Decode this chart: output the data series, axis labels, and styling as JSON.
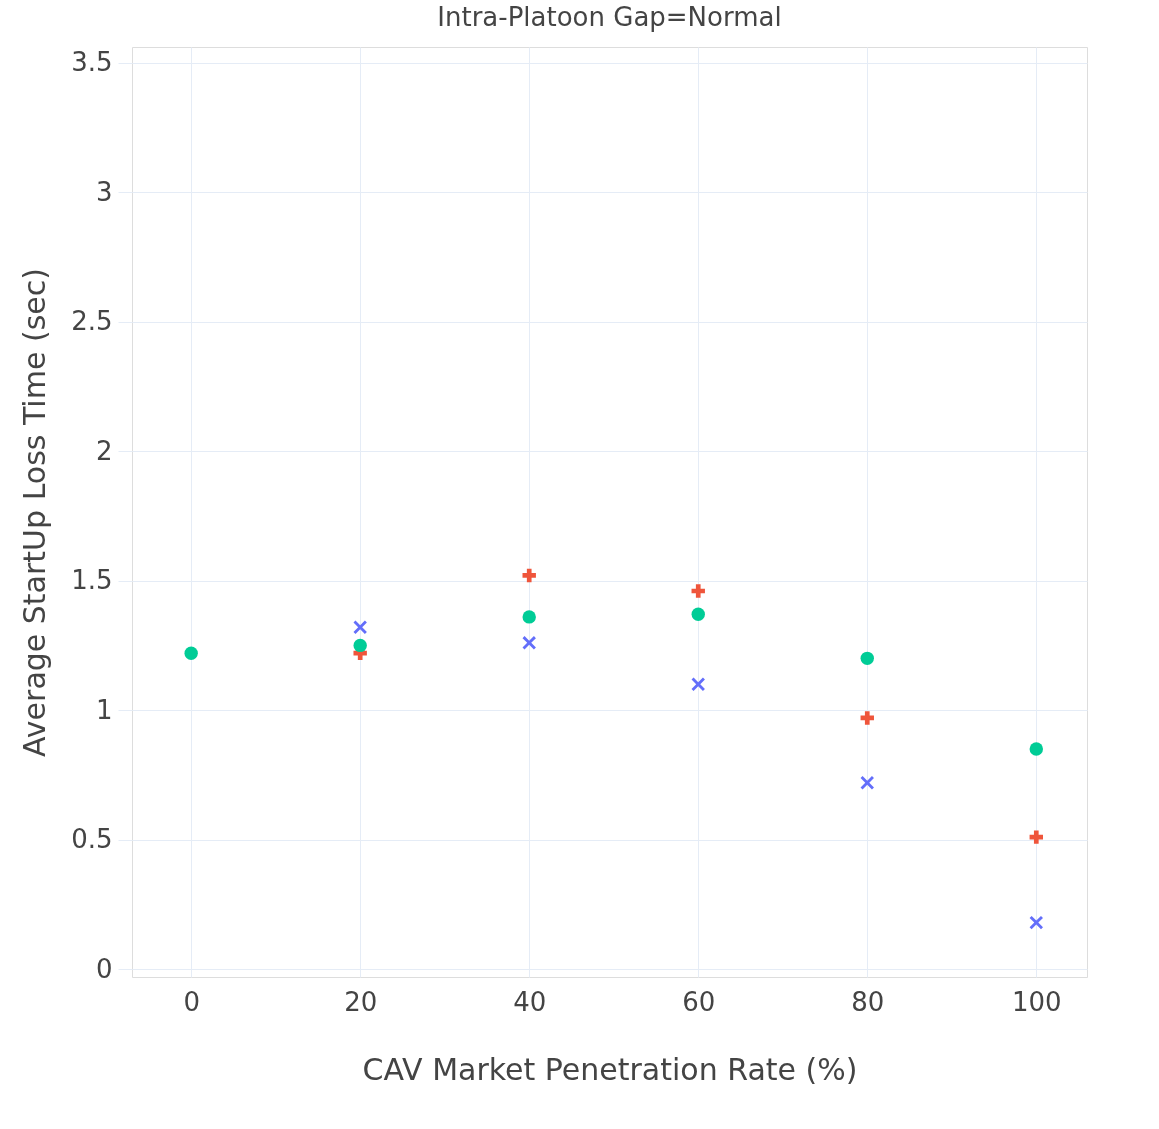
{
  "chart_data": {
    "type": "scatter",
    "title": "Intra-Platoon Gap=Normal",
    "xlabel": "CAV Market Penetration Rate (%)",
    "ylabel": "Average StartUp Loss Time (sec)",
    "x": [
      0,
      20,
      40,
      60,
      80,
      100
    ],
    "series": [
      {
        "color": "#ef553b",
        "marker": "cross",
        "values": [
          null,
          1.22,
          1.52,
          1.46,
          0.97,
          0.51
        ]
      },
      {
        "color": "#636efa",
        "marker": "x",
        "values": [
          null,
          1.32,
          1.26,
          1.1,
          0.72,
          0.18
        ]
      },
      {
        "color": "#00cc96",
        "marker": "circle",
        "values": [
          1.22,
          1.25,
          1.36,
          1.37,
          1.2,
          0.85
        ]
      }
    ],
    "xlim": [
      -7,
      106
    ],
    "ylim": [
      -0.03,
      3.56
    ],
    "xticks": [
      0,
      20,
      40,
      60,
      80,
      100
    ],
    "yticks": [
      {
        "value": 0,
        "label": "0"
      },
      0.5,
      {
        "value": 1,
        "label": "1"
      },
      1.5,
      {
        "value": 2,
        "label": "2"
      },
      2.5,
      {
        "value": 3,
        "label": "3"
      },
      3.5
    ],
    "grid": true
  }
}
